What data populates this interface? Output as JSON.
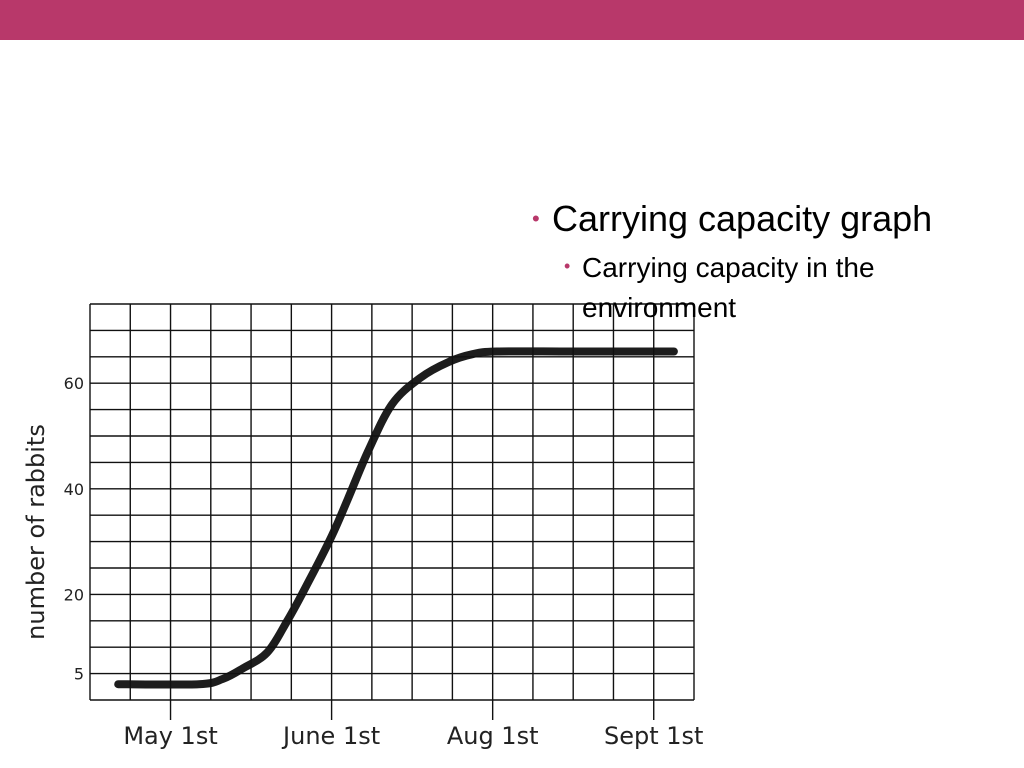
{
  "slide": {
    "accent_color": "#b8386a",
    "bullets": [
      {
        "text": "Carrying capacity graph",
        "level": 1
      },
      {
        "text": "Carrying capacity in the environment",
        "level": 2
      }
    ]
  },
  "chart_data": {
    "type": "line",
    "title": "",
    "xlabel": "",
    "ylabel": "number of rabbits",
    "x_tick_labels": [
      {
        "x": 2,
        "label": "May 1st"
      },
      {
        "x": 6,
        "label": "June 1st"
      },
      {
        "x": 10,
        "label": "Aug 1st"
      },
      {
        "x": 14,
        "label": "Sept 1st"
      }
    ],
    "y_ticks": [
      5,
      20,
      40,
      60
    ],
    "xlim": [
      0,
      15
    ],
    "ylim": [
      0,
      75
    ],
    "grid": true,
    "series": [
      {
        "x": [
          0.7,
          2.7,
          3.3,
          3.8,
          4.4,
          4.9,
          5.4,
          6.0,
          6.4,
          6.9,
          7.5,
          8.2,
          8.9,
          9.5,
          10.1,
          12.0,
          14.5
        ],
        "y": [
          3,
          3,
          4,
          6,
          9,
          15,
          22,
          31,
          38,
          47,
          56,
          61,
          64,
          65.5,
          66,
          66,
          66
        ]
      }
    ]
  }
}
